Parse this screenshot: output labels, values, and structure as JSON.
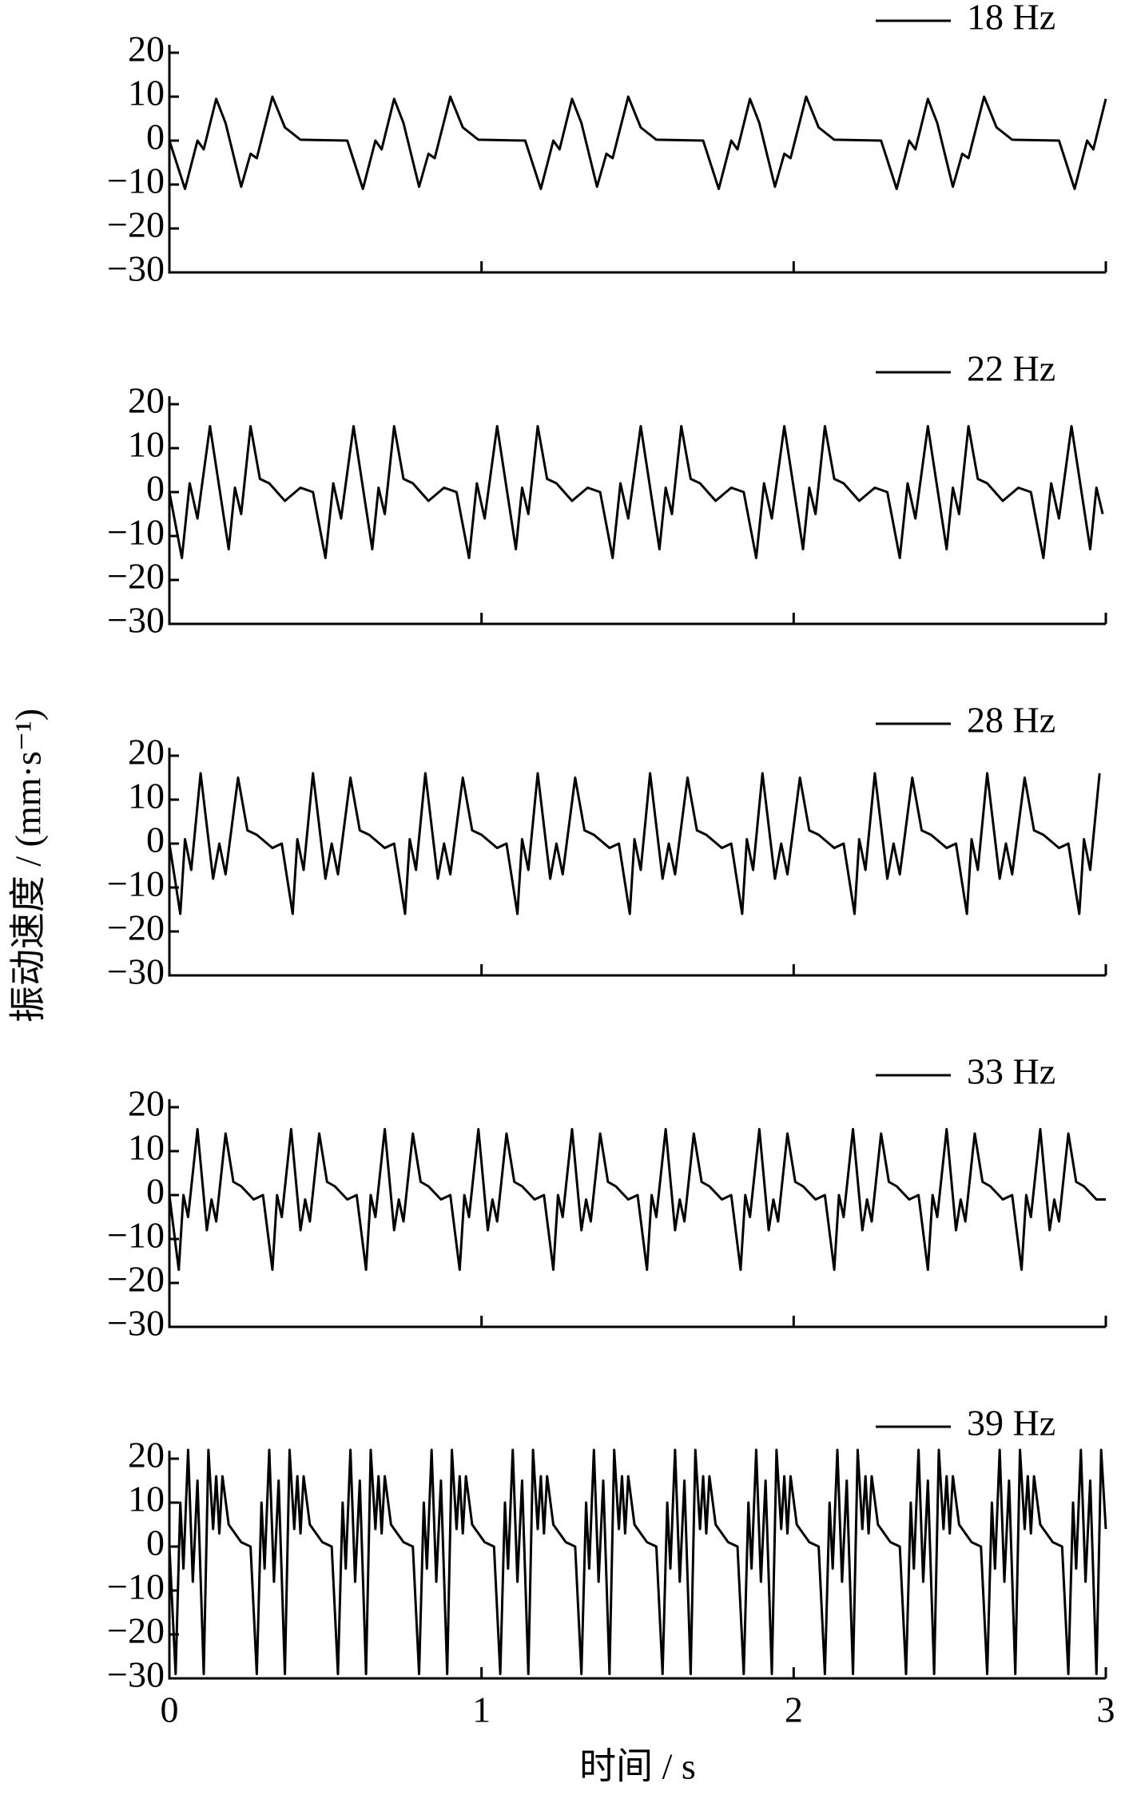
{
  "chart_data": [
    {
      "type": "line",
      "xlim": [
        0,
        3
      ],
      "xticks": [
        0,
        1,
        2,
        3
      ],
      "ylim": [
        -30,
        20
      ],
      "yticks": [
        {
          "value": -30,
          "label": "−30"
        },
        {
          "value": -20,
          "label": "−20"
        },
        {
          "value": -10,
          "label": "−10"
        },
        0,
        10,
        20
      ],
      "x": [
        0,
        0.05,
        0.09,
        0.11,
        0.15,
        0.18,
        0.23,
        0.26,
        0.28,
        0.33,
        0.37,
        0.42,
        0.57,
        0.62,
        0.66,
        0.68,
        0.72,
        0.75,
        0.8,
        0.83,
        0.85,
        0.9,
        0.94,
        0.99,
        1.14,
        1.19,
        1.23,
        1.25,
        1.29,
        1.32,
        1.37,
        1.4,
        1.42,
        1.47,
        1.51,
        1.56,
        1.71,
        1.76,
        1.8,
        1.82,
        1.86,
        1.89,
        1.94,
        1.97,
        1.99,
        2.04,
        2.08,
        2.13,
        2.28,
        2.33,
        2.37,
        2.39,
        2.43,
        2.46,
        2.51,
        2.54,
        2.56,
        2.61,
        2.65,
        2.7,
        2.85,
        2.9,
        2.94,
        2.96,
        3.0
      ],
      "series": [
        {
          "name": "18 Hz",
          "color": "#000000",
          "values": [
            0,
            -11,
            0,
            -2,
            9.5,
            4,
            -10.5,
            -3,
            -4,
            10,
            3,
            0.2,
            0,
            -11,
            0,
            -2,
            9.5,
            4,
            -10.5,
            -3,
            -4,
            10,
            3,
            0.2,
            0,
            -11,
            0,
            -2,
            9.5,
            4,
            -10.5,
            -3,
            -4,
            10,
            3,
            0.2,
            0,
            -11,
            0,
            -2,
            9.5,
            4,
            -10.5,
            -3,
            -4,
            10,
            3,
            0.2,
            0,
            -11,
            0,
            -2,
            9.5,
            4,
            -10.5,
            -3,
            -4,
            10,
            3,
            0.2,
            0,
            -11,
            0,
            -2,
            9.5
          ]
        }
      ]
    },
    {
      "type": "line",
      "xlim": [
        0,
        3
      ],
      "xticks": [
        0,
        1,
        2,
        3
      ],
      "ylim": [
        -30,
        20
      ],
      "yticks": [
        {
          "value": -30,
          "label": "−30"
        },
        {
          "value": -20,
          "label": "−20"
        },
        {
          "value": -10,
          "label": "−10"
        },
        0,
        10,
        20
      ],
      "x": [
        0,
        0.04,
        0.065,
        0.09,
        0.13,
        0.19,
        0.21,
        0.23,
        0.26,
        0.29,
        0.32,
        0.37,
        0.42,
        0.46,
        0.5,
        0.525,
        0.55,
        0.59,
        0.65,
        0.67,
        0.69,
        0.72,
        0.75,
        0.78,
        0.83,
        0.88,
        0.92,
        0.96,
        0.985,
        1.01,
        1.05,
        1.11,
        1.13,
        1.15,
        1.18,
        1.21,
        1.24,
        1.29,
        1.34,
        1.38,
        1.42,
        1.445,
        1.47,
        1.51,
        1.57,
        1.59,
        1.61,
        1.64,
        1.67,
        1.7,
        1.75,
        1.8,
        1.84,
        1.88,
        1.905,
        1.93,
        1.97,
        2.03,
        2.05,
        2.07,
        2.1,
        2.13,
        2.16,
        2.21,
        2.26,
        2.3,
        2.34,
        2.365,
        2.39,
        2.43,
        2.49,
        2.51,
        2.53,
        2.56,
        2.59,
        2.62,
        2.67,
        2.72,
        2.76,
        2.8,
        2.825,
        2.85,
        2.89,
        2.95,
        2.97,
        2.99
      ],
      "series": [
        {
          "name": "22 Hz",
          "color": "#000000",
          "values": [
            0,
            -15,
            2,
            -6,
            15,
            -13,
            1,
            -5,
            15,
            3,
            2,
            -2,
            1,
            0,
            -15,
            2,
            -6,
            15,
            -13,
            1,
            -5,
            15,
            3,
            2,
            -2,
            1,
            0,
            -15,
            2,
            -6,
            15,
            -13,
            1,
            -5,
            15,
            3,
            2,
            -2,
            1,
            0,
            -15,
            2,
            -6,
            15,
            -13,
            1,
            -5,
            15,
            3,
            2,
            -2,
            1,
            0,
            -15,
            2,
            -6,
            15,
            -13,
            1,
            -5,
            15,
            3,
            2,
            -2,
            1,
            0,
            -15,
            2,
            -6,
            15,
            -13,
            1,
            -5,
            15,
            3,
            2,
            -2,
            1,
            0,
            -15,
            2,
            -6,
            15,
            -13,
            1,
            -5
          ]
        }
      ]
    },
    {
      "type": "line",
      "xlim": [
        0,
        3
      ],
      "xticks": [
        0,
        1,
        2,
        3
      ],
      "ylim": [
        -30,
        20
      ],
      "yticks": [
        {
          "value": -30,
          "label": "−30"
        },
        {
          "value": -20,
          "label": "−20"
        },
        {
          "value": -10,
          "label": "−10"
        },
        0,
        10,
        20
      ],
      "x": [
        0,
        0.035,
        0.05,
        0.07,
        0.1,
        0.14,
        0.16,
        0.18,
        0.22,
        0.25,
        0.28,
        0.33,
        0.36,
        0.395,
        0.41,
        0.43,
        0.46,
        0.5,
        0.52,
        0.54,
        0.58,
        0.61,
        0.64,
        0.69,
        0.72,
        0.755,
        0.77,
        0.79,
        0.82,
        0.86,
        0.88,
        0.9,
        0.94,
        0.97,
        1.0,
        1.05,
        1.08,
        1.115,
        1.13,
        1.15,
        1.18,
        1.22,
        1.24,
        1.26,
        1.3,
        1.33,
        1.36,
        1.41,
        1.44,
        1.475,
        1.49,
        1.51,
        1.54,
        1.58,
        1.6,
        1.62,
        1.66,
        1.69,
        1.72,
        1.77,
        1.8,
        1.835,
        1.85,
        1.87,
        1.9,
        1.94,
        1.96,
        1.98,
        2.02,
        2.05,
        2.08,
        2.13,
        2.16,
        2.195,
        2.21,
        2.23,
        2.26,
        2.3,
        2.32,
        2.34,
        2.38,
        2.41,
        2.44,
        2.49,
        2.52,
        2.555,
        2.57,
        2.59,
        2.62,
        2.66,
        2.68,
        2.7,
        2.74,
        2.77,
        2.8,
        2.85,
        2.88,
        2.915,
        2.93,
        2.95,
        2.98
      ],
      "series": [
        {
          "name": "28 Hz",
          "color": "#000000",
          "values": [
            0,
            -16,
            1,
            -6,
            16,
            -8,
            0,
            -7,
            15,
            3,
            2,
            -1,
            0,
            -16,
            1,
            -6,
            16,
            -8,
            0,
            -7,
            15,
            3,
            2,
            -1,
            0,
            -16,
            1,
            -6,
            16,
            -8,
            0,
            -7,
            15,
            3,
            2,
            -1,
            0,
            -16,
            1,
            -6,
            16,
            -8,
            0,
            -7,
            15,
            3,
            2,
            -1,
            0,
            -16,
            1,
            -6,
            16,
            -8,
            0,
            -7,
            15,
            3,
            2,
            -1,
            0,
            -16,
            1,
            -6,
            16,
            -8,
            0,
            -7,
            15,
            3,
            2,
            -1,
            0,
            -16,
            1,
            -6,
            16,
            -8,
            0,
            -7,
            15,
            3,
            2,
            -1,
            0,
            -16,
            1,
            -6,
            16,
            -8,
            0,
            -7,
            15,
            3,
            2,
            -1,
            0,
            -16,
            1,
            -6,
            16
          ]
        }
      ]
    },
    {
      "type": "line",
      "xlim": [
        0,
        3
      ],
      "xticks": [
        0,
        1,
        2,
        3
      ],
      "ylim": [
        -30,
        20
      ],
      "yticks": [
        {
          "value": -30,
          "label": "−30"
        },
        {
          "value": -20,
          "label": "−20"
        },
        {
          "value": -10,
          "label": "−10"
        },
        0,
        10,
        20
      ],
      "x": [
        0,
        0.03,
        0.045,
        0.06,
        0.09,
        0.12,
        0.135,
        0.15,
        0.18,
        0.205,
        0.23,
        0.27,
        0.3,
        0.33,
        0.345,
        0.36,
        0.39,
        0.42,
        0.435,
        0.45,
        0.48,
        0.505,
        0.53,
        0.57,
        0.6,
        0.63,
        0.645,
        0.66,
        0.69,
        0.72,
        0.735,
        0.75,
        0.78,
        0.805,
        0.83,
        0.87,
        0.9,
        0.93,
        0.945,
        0.96,
        0.99,
        1.02,
        1.035,
        1.05,
        1.08,
        1.105,
        1.13,
        1.17,
        1.2,
        1.23,
        1.245,
        1.26,
        1.29,
        1.32,
        1.335,
        1.35,
        1.38,
        1.405,
        1.43,
        1.47,
        1.5,
        1.53,
        1.545,
        1.56,
        1.59,
        1.62,
        1.635,
        1.65,
        1.68,
        1.705,
        1.73,
        1.77,
        1.8,
        1.83,
        1.845,
        1.86,
        1.89,
        1.92,
        1.935,
        1.95,
        1.98,
        2.005,
        2.03,
        2.07,
        2.1,
        2.13,
        2.145,
        2.16,
        2.19,
        2.22,
        2.235,
        2.25,
        2.28,
        2.305,
        2.33,
        2.37,
        2.4,
        2.43,
        2.445,
        2.46,
        2.49,
        2.52,
        2.535,
        2.55,
        2.58,
        2.605,
        2.63,
        2.67,
        2.7,
        2.73,
        2.745,
        2.76,
        2.79,
        2.82,
        2.835,
        2.85,
        2.88,
        2.905,
        2.93,
        2.97,
        3.0
      ],
      "series": [
        {
          "name": "33 Hz",
          "color": "#000000",
          "values": [
            0,
            -17,
            0,
            -5,
            15,
            -8,
            -1,
            -6,
            14,
            3,
            2,
            -1,
            0,
            -17,
            0,
            -5,
            15,
            -8,
            -1,
            -6,
            14,
            3,
            2,
            -1,
            0,
            -17,
            0,
            -5,
            15,
            -8,
            -1,
            -6,
            14,
            3,
            2,
            -1,
            0,
            -17,
            0,
            -5,
            15,
            -8,
            -1,
            -6,
            14,
            3,
            2,
            -1,
            0,
            -17,
            0,
            -5,
            15,
            -8,
            -1,
            -6,
            14,
            3,
            2,
            -1,
            0,
            -17,
            0,
            -5,
            15,
            -8,
            -1,
            -6,
            14,
            3,
            2,
            -1,
            0,
            -17,
            0,
            -5,
            15,
            -8,
            -1,
            -6,
            14,
            3,
            2,
            -1,
            0,
            -17,
            0,
            -5,
            15,
            -8,
            -1,
            -6,
            14,
            3,
            2,
            -1,
            0,
            -17,
            0,
            -5,
            15,
            -8,
            -1,
            -6,
            14,
            3,
            2,
            -1,
            0,
            -17,
            0,
            -5,
            15,
            -8,
            -1,
            -6,
            14,
            3,
            2,
            -1,
            -1
          ]
        }
      ]
    },
    {
      "type": "line",
      "xlim": [
        0,
        3
      ],
      "xticks": [
        0,
        1,
        2,
        3
      ],
      "ylim": [
        -30,
        20
      ],
      "yticks": [
        {
          "value": -30,
          "label": "−30"
        },
        {
          "value": -20,
          "label": "−20"
        },
        {
          "value": -10,
          "label": "−10"
        },
        0,
        10,
        20
      ],
      "xlabel": "时间 / s",
      "ylabel": "振动速度 / (mm·s⁻¹)",
      "x": [
        0,
        0.02,
        0.035,
        0.045,
        0.06,
        0.075,
        0.09,
        0.11,
        0.125,
        0.14,
        0.15,
        0.16,
        0.17,
        0.19,
        0.21,
        0.23,
        0.26,
        0.28,
        0.295,
        0.305,
        0.32,
        0.335,
        0.35,
        0.37,
        0.385,
        0.4,
        0.41,
        0.42,
        0.43,
        0.45,
        0.47,
        0.49,
        0.52,
        0.54,
        0.555,
        0.565,
        0.58,
        0.595,
        0.61,
        0.63,
        0.645,
        0.66,
        0.67,
        0.68,
        0.69,
        0.71,
        0.73,
        0.75,
        0.78,
        0.8,
        0.815,
        0.825,
        0.84,
        0.855,
        0.87,
        0.89,
        0.905,
        0.92,
        0.93,
        0.94,
        0.95,
        0.97,
        0.99,
        1.01,
        1.04,
        1.06,
        1.075,
        1.085,
        1.1,
        1.115,
        1.13,
        1.15,
        1.165,
        1.18,
        1.19,
        1.2,
        1.21,
        1.23,
        1.25,
        1.27,
        1.3,
        1.32,
        1.335,
        1.345,
        1.36,
        1.375,
        1.39,
        1.41,
        1.425,
        1.44,
        1.45,
        1.46,
        1.47,
        1.49,
        1.51,
        1.53,
        1.56,
        1.58,
        1.595,
        1.605,
        1.62,
        1.635,
        1.65,
        1.67,
        1.685,
        1.7,
        1.71,
        1.72,
        1.73,
        1.75,
        1.77,
        1.79,
        1.82,
        1.84,
        1.855,
        1.865,
        1.88,
        1.895,
        1.91,
        1.93,
        1.945,
        1.96,
        1.97,
        1.98,
        1.99,
        2.01,
        2.03,
        2.05,
        2.08,
        2.1,
        2.115,
        2.125,
        2.14,
        2.155,
        2.17,
        2.19,
        2.205,
        2.22,
        2.23,
        2.24,
        2.25,
        2.27,
        2.29,
        2.31,
        2.34,
        2.36,
        2.375,
        2.385,
        2.4,
        2.415,
        2.43,
        2.45,
        2.465,
        2.48,
        2.49,
        2.5,
        2.51,
        2.53,
        2.55,
        2.57,
        2.6,
        2.62,
        2.635,
        2.645,
        2.66,
        2.675,
        2.69,
        2.71,
        2.725,
        2.74,
        2.75,
        2.76,
        2.77,
        2.79,
        2.81,
        2.83,
        2.86,
        2.88,
        2.895,
        2.905,
        2.92,
        2.935,
        2.95,
        2.97,
        2.985,
        3.0
      ],
      "series": [
        {
          "name": "39 Hz",
          "color": "#000000",
          "values": [
            0,
            -29,
            10,
            -5,
            22,
            -8,
            15,
            -29,
            22,
            4,
            16,
            3,
            16,
            5,
            3,
            1,
            0,
            -29,
            10,
            -5,
            22,
            -8,
            15,
            -29,
            22,
            4,
            16,
            3,
            16,
            5,
            3,
            1,
            0,
            -29,
            10,
            -5,
            22,
            -8,
            15,
            -29,
            22,
            4,
            16,
            3,
            16,
            5,
            3,
            1,
            0,
            -29,
            10,
            -5,
            22,
            -8,
            15,
            -29,
            22,
            4,
            16,
            3,
            16,
            5,
            3,
            1,
            0,
            -29,
            10,
            -5,
            22,
            -8,
            15,
            -29,
            22,
            4,
            16,
            3,
            16,
            5,
            3,
            1,
            0,
            -29,
            10,
            -5,
            22,
            -8,
            15,
            -29,
            22,
            4,
            16,
            3,
            16,
            5,
            3,
            1,
            0,
            -29,
            10,
            -5,
            22,
            -8,
            15,
            -29,
            22,
            4,
            16,
            3,
            16,
            5,
            3,
            1,
            0,
            -29,
            10,
            -5,
            22,
            -8,
            15,
            -29,
            22,
            4,
            16,
            3,
            16,
            5,
            3,
            1,
            0,
            -29,
            10,
            -5,
            22,
            -8,
            15,
            -29,
            22,
            4,
            16,
            3,
            16,
            5,
            3,
            1,
            0,
            -29,
            10,
            -5,
            22,
            -8,
            15,
            -29,
            22,
            4,
            16,
            3,
            16,
            5,
            3,
            1,
            0,
            -29,
            10,
            -5,
            22,
            -8,
            15,
            -29,
            22,
            4,
            16,
            3,
            16,
            5,
            3,
            1,
            0,
            -29,
            10,
            -5,
            22,
            -8,
            15,
            -29,
            22,
            4
          ]
        }
      ]
    }
  ]
}
